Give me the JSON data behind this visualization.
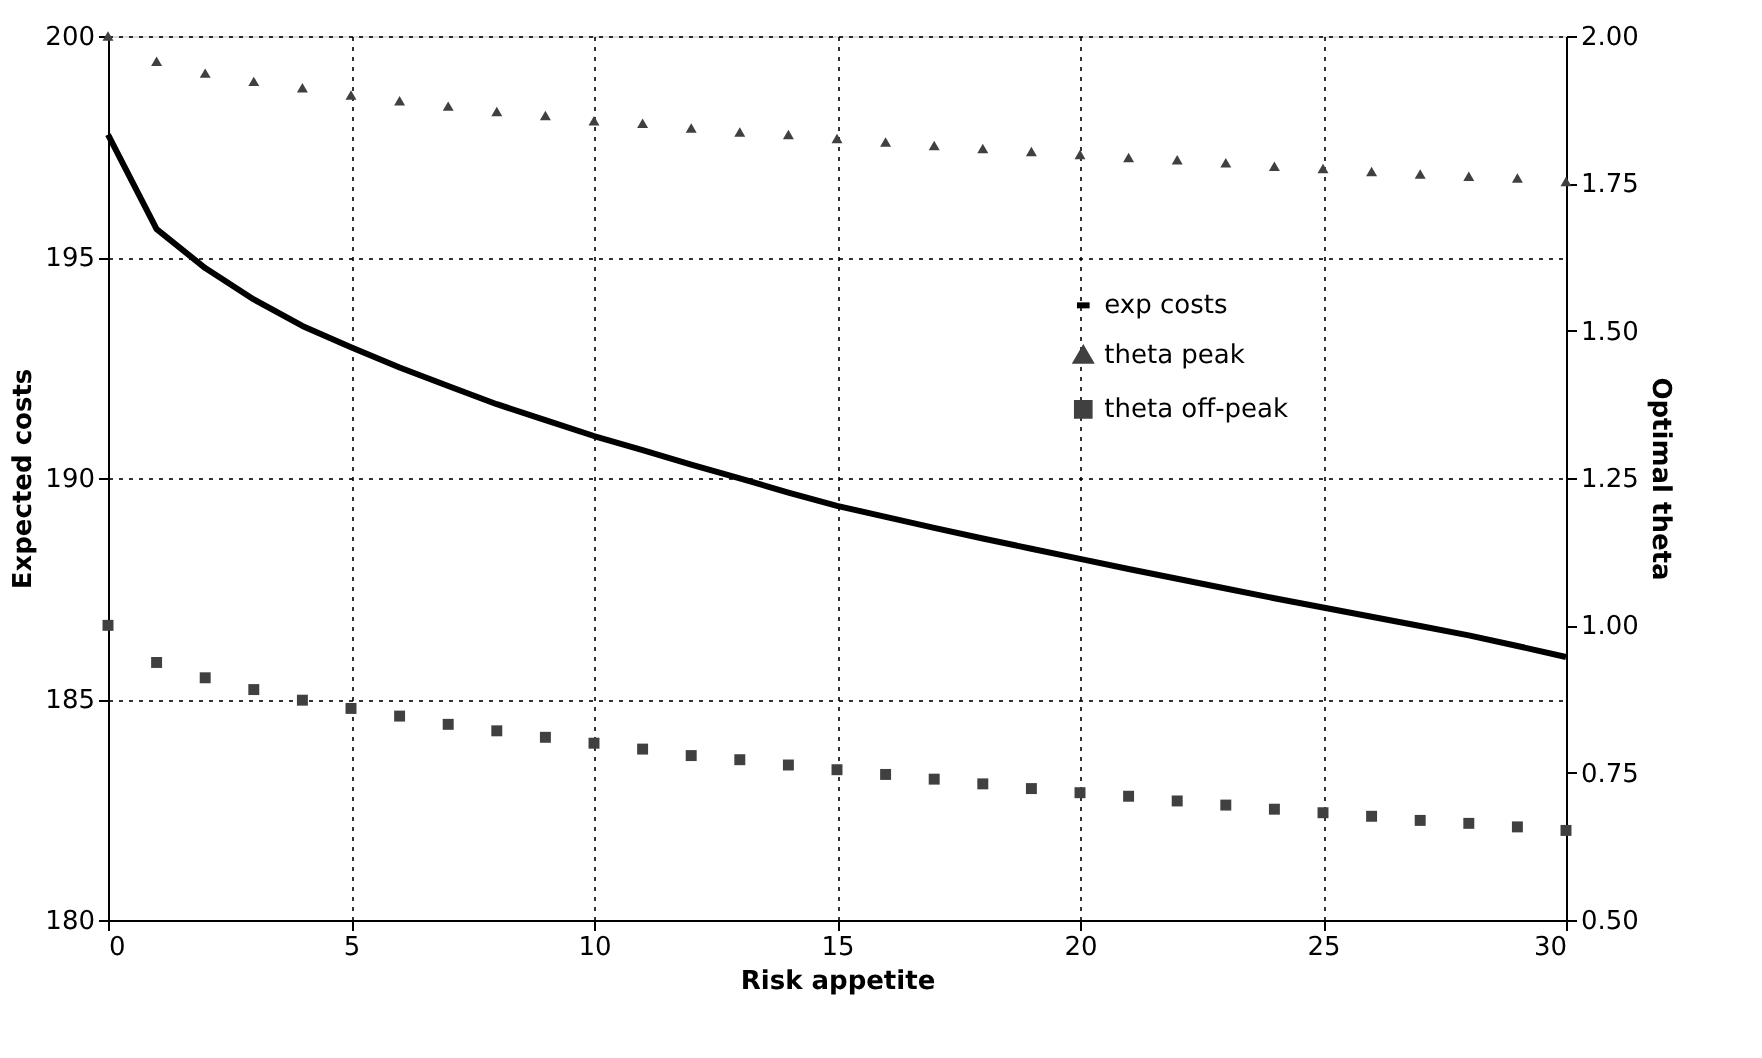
{
  "chart_data": {
    "type": "line",
    "xlabel": "Risk appetite",
    "ylabel": "Expected costs",
    "y2label": "Optimal theta",
    "x": [
      0,
      1,
      2,
      3,
      4,
      5,
      6,
      7,
      8,
      9,
      10,
      11,
      12,
      13,
      14,
      15,
      16,
      17,
      18,
      19,
      20,
      21,
      22,
      23,
      24,
      25,
      26,
      27,
      28,
      29,
      30
    ],
    "series": [
      {
        "name": "exp costs",
        "color": "#000000",
        "line_style": "solid",
        "marker": "none",
        "values": [
          197.77,
          195.63,
          194.75,
          194.04,
          193.44,
          192.96,
          192.5,
          192.08,
          191.67,
          191.31,
          190.95,
          190.63,
          190.3,
          189.99,
          189.67,
          189.37,
          189.12,
          188.87,
          188.63,
          188.4,
          188.17,
          187.94,
          187.72,
          187.5,
          187.28,
          187.07,
          186.86,
          186.65,
          186.44,
          186.2,
          185.95
        ]
      },
      {
        "name": "theta peak",
        "type": "scatter",
        "axis": "y2",
        "color": "#404040",
        "marker": "triangle",
        "values": [
          2.0,
          1.957,
          1.937,
          1.923,
          1.912,
          1.9,
          1.89,
          1.881,
          1.872,
          1.865,
          1.856,
          1.852,
          1.844,
          1.837,
          1.833,
          1.826,
          1.82,
          1.814,
          1.809,
          1.804,
          1.799,
          1.794,
          1.79,
          1.785,
          1.779,
          1.775,
          1.77,
          1.766,
          1.762,
          1.759,
          1.753
        ]
      },
      {
        "name": "theta off-peak",
        "type": "scatter",
        "axis": "y2",
        "color": "#404040",
        "marker": "square",
        "values": [
          1.0,
          0.937,
          0.911,
          0.891,
          0.873,
          0.859,
          0.846,
          0.832,
          0.821,
          0.81,
          0.8,
          0.79,
          0.779,
          0.772,
          0.763,
          0.755,
          0.747,
          0.739,
          0.731,
          0.723,
          0.716,
          0.71,
          0.702,
          0.695,
          0.688,
          0.682,
          0.676,
          0.669,
          0.664,
          0.658,
          0.652
        ]
      }
    ],
    "xlim": [
      0,
      30
    ],
    "xticks": [
      0,
      5,
      10,
      15,
      20,
      25,
      30
    ],
    "ylim": [
      180,
      200
    ],
    "yticks": [
      180,
      185,
      190,
      195,
      200
    ],
    "y2lim": [
      0.5,
      2.0
    ],
    "y2ticks": [
      {
        "value": 0.5,
        "label": "0.50"
      },
      {
        "value": 0.75,
        "label": "0.75"
      },
      {
        "value": 1.0,
        "label": "1.00"
      },
      {
        "value": 1.25,
        "label": "1.25"
      },
      {
        "value": 1.5,
        "label": "1.50"
      },
      {
        "value": 1.75,
        "label": "1.75"
      },
      {
        "value": 2.0,
        "label": "2.00"
      }
    ],
    "grid": true,
    "legend": "right"
  }
}
